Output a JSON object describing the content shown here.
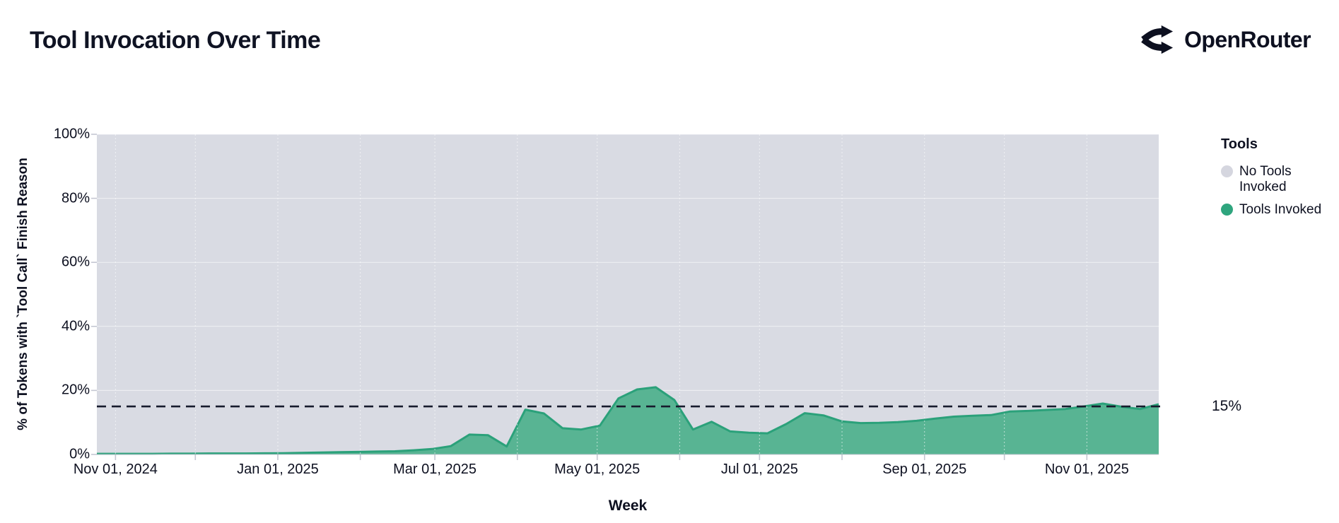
{
  "header": {
    "title": "Tool Invocation Over Time",
    "brand": "OpenRouter"
  },
  "legend": {
    "title": "Tools",
    "items": [
      {
        "label": "No Tools Invoked",
        "color": "#d5d6df"
      },
      {
        "label": "Tools Invoked",
        "color": "#2fa57e"
      }
    ]
  },
  "annotations": {
    "reference_label": "15%"
  },
  "colors": {
    "plot_background": "#d9dbe3",
    "area_fill": "#58b493",
    "area_stroke": "#2ba17a",
    "reference_line": "#171b2d",
    "gridline": "rgba(255,255,255,0.6)",
    "tick": "#c4c7d2",
    "text": "#0d1020"
  },
  "chart_data": {
    "type": "area",
    "stacked": true,
    "title": "Tool Invocation Over Time",
    "xlabel": "Week",
    "ylabel": "% of Tokens with `Tool Call` Finish Reason",
    "ylim": [
      0,
      100
    ],
    "grid": true,
    "legend_position": "right",
    "y_tick_labels": [
      "0%",
      "20%",
      "40%",
      "60%",
      "80%",
      "100%"
    ],
    "x_tick_labels": [
      "Nov 01, 2024",
      "Jan 01, 2025",
      "Mar 01, 2025",
      "May 01, 2025",
      "Jul 01, 2025",
      "Sep 01, 2025",
      "Nov 01, 2025"
    ],
    "reference_line": {
      "value": 15,
      "label": "15%",
      "style": "dashed"
    },
    "x": [
      "2024-11-01",
      "2024-11-08",
      "2024-11-15",
      "2024-11-22",
      "2024-11-29",
      "2024-12-06",
      "2024-12-13",
      "2024-12-20",
      "2024-12-27",
      "2025-01-03",
      "2025-01-10",
      "2025-01-17",
      "2025-01-24",
      "2025-01-31",
      "2025-02-07",
      "2025-02-14",
      "2025-02-21",
      "2025-02-28",
      "2025-03-07",
      "2025-03-14",
      "2025-03-21",
      "2025-03-28",
      "2025-04-04",
      "2025-04-11",
      "2025-04-18",
      "2025-04-25",
      "2025-05-02",
      "2025-05-09",
      "2025-05-16",
      "2025-05-23",
      "2025-05-30",
      "2025-06-06",
      "2025-06-13",
      "2025-06-20",
      "2025-06-27",
      "2025-07-04",
      "2025-07-11",
      "2025-07-18",
      "2025-07-25",
      "2025-08-01",
      "2025-08-08",
      "2025-08-15",
      "2025-08-22",
      "2025-08-29",
      "2025-09-05",
      "2025-09-12",
      "2025-09-19",
      "2025-09-26",
      "2025-10-03",
      "2025-10-10",
      "2025-10-17",
      "2025-10-24",
      "2025-10-31",
      "2025-11-07",
      "2025-11-14",
      "2025-11-21",
      "2025-11-28"
    ],
    "series": [
      {
        "name": "Tools Invoked",
        "color": "#58b493",
        "values": [
          0.2,
          0.2,
          0.2,
          0.25,
          0.25,
          0.3,
          0.3,
          0.3,
          0.35,
          0.4,
          0.5,
          0.6,
          0.7,
          0.8,
          0.9,
          1.0,
          1.3,
          1.7,
          2.6,
          6.2,
          6.0,
          2.5,
          14.0,
          12.8,
          8.2,
          7.8,
          9.0,
          17.5,
          20.3,
          21.0,
          17.0,
          7.8,
          10.2,
          7.2,
          6.8,
          6.6,
          9.5,
          12.9,
          12.2,
          10.3,
          9.8,
          9.9,
          10.1,
          10.5,
          11.2,
          11.8,
          12.1,
          12.3,
          13.4,
          13.6,
          13.9,
          14.2,
          15.0,
          15.9,
          14.9,
          14.2,
          15.7
        ]
      },
      {
        "name": "No Tools Invoked",
        "color": "#d9dbe3",
        "values": [
          99.8,
          99.8,
          99.8,
          99.75,
          99.75,
          99.7,
          99.7,
          99.7,
          99.65,
          99.6,
          99.5,
          99.4,
          99.3,
          99.2,
          99.1,
          99.0,
          98.7,
          98.3,
          97.4,
          93.8,
          94.0,
          97.5,
          86.0,
          87.2,
          91.8,
          92.2,
          91.0,
          82.5,
          79.7,
          79.0,
          83.0,
          92.2,
          89.8,
          92.8,
          93.2,
          93.4,
          90.5,
          87.1,
          87.8,
          89.7,
          90.2,
          90.1,
          89.9,
          89.5,
          88.8,
          88.2,
          87.9,
          87.7,
          86.6,
          86.4,
          86.1,
          85.8,
          85.0,
          84.1,
          85.1,
          85.8,
          84.3
        ]
      }
    ]
  }
}
